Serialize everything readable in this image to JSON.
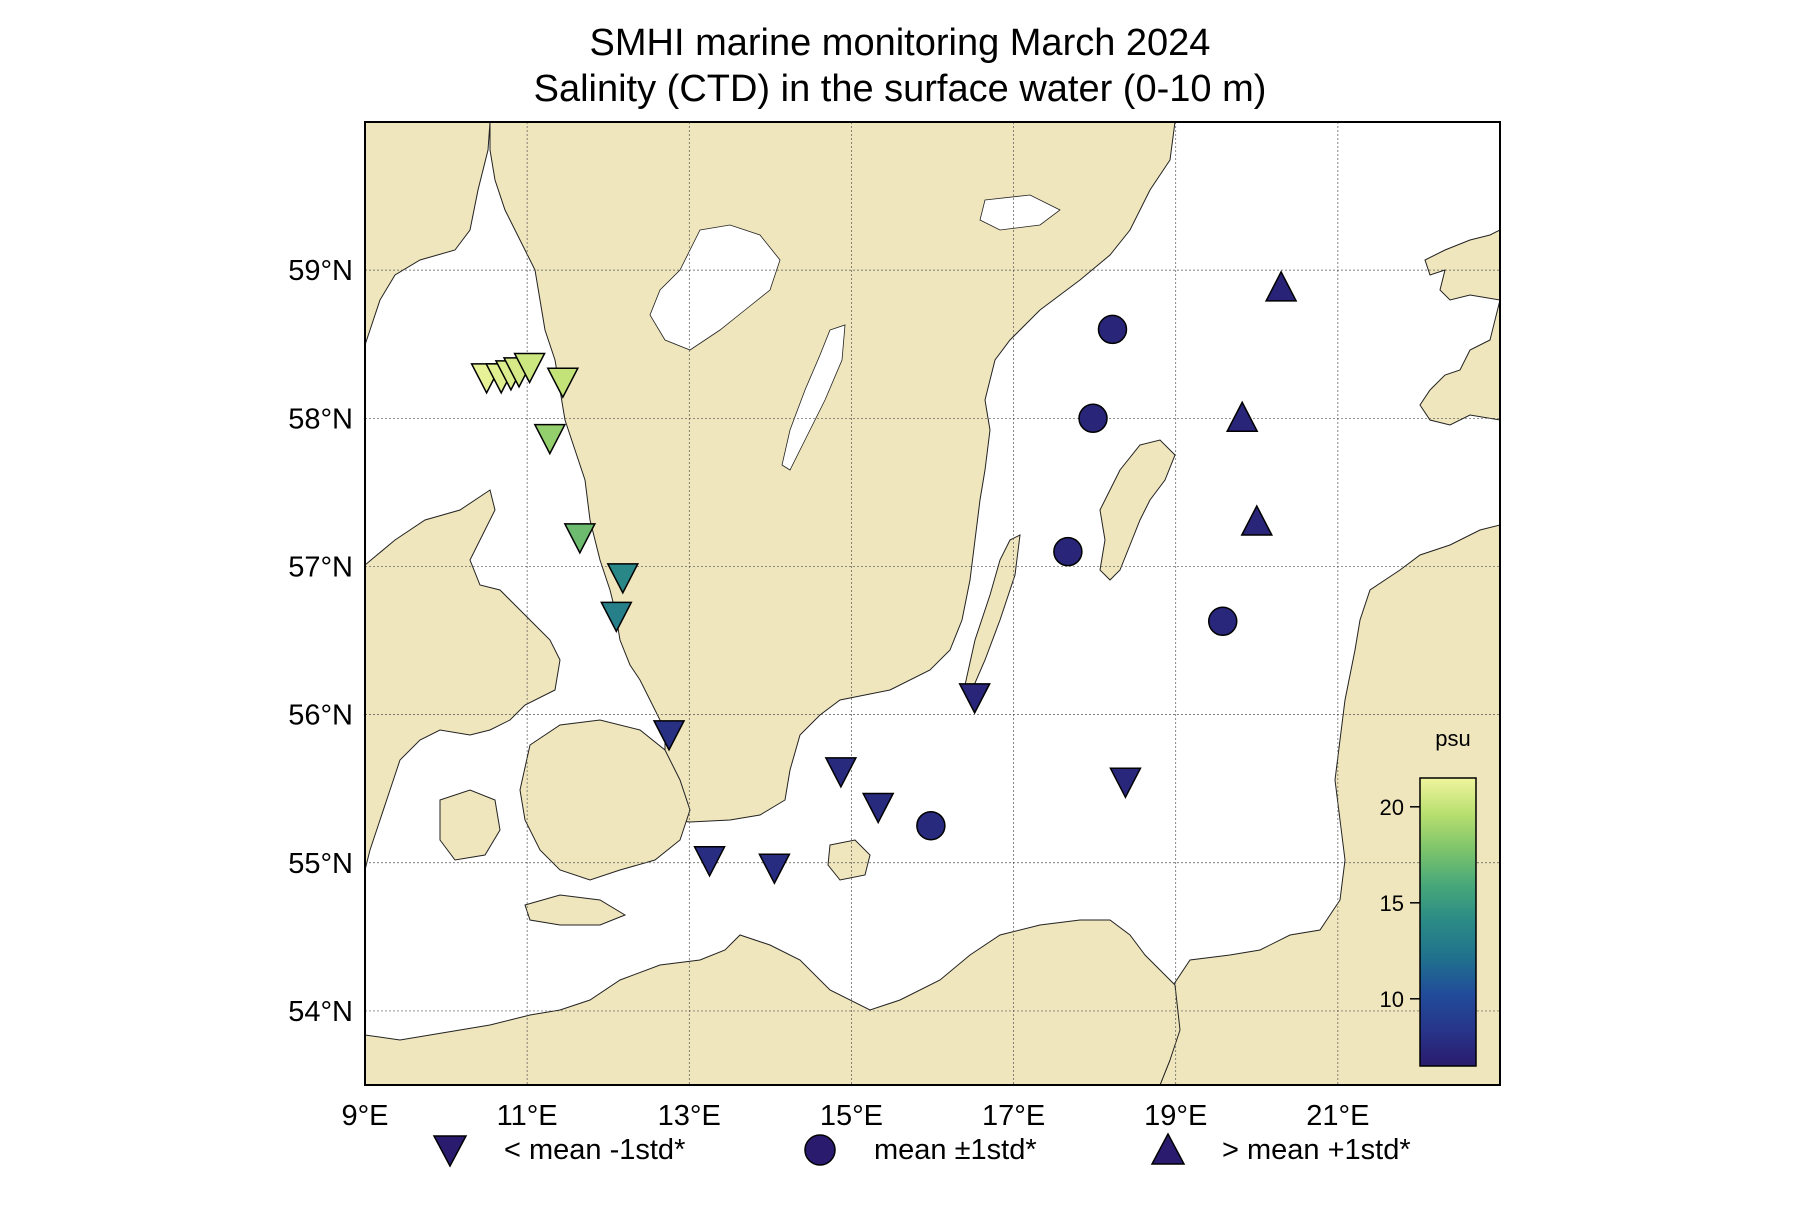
{
  "title": "SMHI marine monitoring March 2024",
  "subtitle": "Salinity (CTD) in the surface water (0-10 m)",
  "map": {
    "lon_range": [
      9,
      23
    ],
    "lat_range": [
      53.5,
      60
    ],
    "lon_ticks": [
      {
        "value": 9,
        "label": "9°E"
      },
      {
        "value": 11,
        "label": "11°E"
      },
      {
        "value": 13,
        "label": "13°E"
      },
      {
        "value": 15,
        "label": "15°E"
      },
      {
        "value": 17,
        "label": "17°E"
      },
      {
        "value": 19,
        "label": "19°E"
      },
      {
        "value": 21,
        "label": "21°E"
      }
    ],
    "lat_ticks": [
      {
        "value": 54,
        "label": "54°N"
      },
      {
        "value": 55,
        "label": "55°N"
      },
      {
        "value": 56,
        "label": "56°N"
      },
      {
        "value": 57,
        "label": "57°N"
      },
      {
        "value": 58,
        "label": "58°N"
      },
      {
        "value": 59,
        "label": "59°N"
      }
    ],
    "land_color": "#f0e6bd",
    "water_color": "#ffffff",
    "gridlines": true
  },
  "colorbar": {
    "label": "psu",
    "min": 6.5,
    "max": 21.5,
    "ticks": [
      {
        "value": 10,
        "label": "10"
      },
      {
        "value": 15,
        "label": "15"
      },
      {
        "value": 20,
        "label": "20"
      }
    ],
    "colormap": [
      "#2a1b6e",
      "#27358a",
      "#214c99",
      "#20718d",
      "#2a8a86",
      "#46a77a",
      "#7cc46b",
      "#b8df6f",
      "#f0f59e"
    ]
  },
  "stations": [
    {
      "lon": 10.5,
      "lat": 58.28,
      "marker": "down",
      "salinity": 21.2
    },
    {
      "lon": 10.68,
      "lat": 58.28,
      "marker": "down",
      "salinity": 21.0
    },
    {
      "lon": 10.8,
      "lat": 58.3,
      "marker": "down",
      "salinity": 20.8
    },
    {
      "lon": 10.9,
      "lat": 58.32,
      "marker": "down",
      "salinity": 20.6
    },
    {
      "lon": 11.03,
      "lat": 58.35,
      "marker": "down",
      "salinity": 20.3
    },
    {
      "lon": 11.44,
      "lat": 58.25,
      "marker": "down",
      "salinity": 20.0
    },
    {
      "lon": 11.28,
      "lat": 57.87,
      "marker": "down",
      "salinity": 18.5
    },
    {
      "lon": 11.65,
      "lat": 57.2,
      "marker": "down",
      "salinity": 17.2
    },
    {
      "lon": 12.18,
      "lat": 56.93,
      "marker": "down",
      "salinity": 13.8
    },
    {
      "lon": 12.1,
      "lat": 56.67,
      "marker": "down",
      "salinity": 13.2
    },
    {
      "lon": 12.75,
      "lat": 55.87,
      "marker": "down",
      "salinity": 8.0
    },
    {
      "lon": 14.87,
      "lat": 55.62,
      "marker": "down",
      "salinity": 7.6
    },
    {
      "lon": 15.33,
      "lat": 55.38,
      "marker": "down",
      "salinity": 7.6
    },
    {
      "lon": 13.25,
      "lat": 55.02,
      "marker": "down",
      "salinity": 7.8
    },
    {
      "lon": 14.05,
      "lat": 54.97,
      "marker": "down",
      "salinity": 7.7
    },
    {
      "lon": 16.52,
      "lat": 56.12,
      "marker": "down",
      "salinity": 7.3
    },
    {
      "lon": 18.38,
      "lat": 55.55,
      "marker": "down",
      "salinity": 7.4
    },
    {
      "lon": 15.98,
      "lat": 55.25,
      "marker": "circle",
      "salinity": 7.6
    },
    {
      "lon": 18.22,
      "lat": 58.6,
      "marker": "circle",
      "salinity": 7.2
    },
    {
      "lon": 17.98,
      "lat": 58.0,
      "marker": "circle",
      "salinity": 7.3
    },
    {
      "lon": 17.67,
      "lat": 57.1,
      "marker": "circle",
      "salinity": 7.3
    },
    {
      "lon": 19.58,
      "lat": 56.63,
      "marker": "circle",
      "salinity": 7.4
    },
    {
      "lon": 20.3,
      "lat": 58.88,
      "marker": "up",
      "salinity": 7.1
    },
    {
      "lon": 19.82,
      "lat": 58.0,
      "marker": "up",
      "salinity": 7.2
    },
    {
      "lon": 20.0,
      "lat": 57.3,
      "marker": "up",
      "salinity": 7.2
    }
  ],
  "legend": {
    "below": "< mean -1std*",
    "within": "mean ±1std*",
    "above": "> mean +1std*",
    "marker_color": "#2a1b6e"
  }
}
